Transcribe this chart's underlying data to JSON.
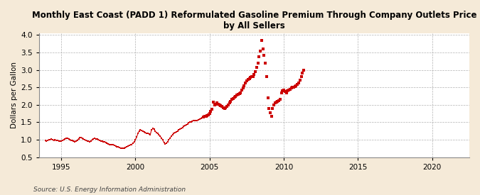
{
  "title": "Monthly East Coast (PADD 1) Reformulated Gasoline Premium Through Company Outlets Price\nby All Sellers",
  "ylabel": "Dollars per Gallon",
  "source": "Source: U.S. Energy Information Administration",
  "background_color": "#f5ead8",
  "line_color": "#cc0000",
  "xlim": [
    1993.5,
    2022.5
  ],
  "ylim": [
    0.5,
    4.05
  ],
  "yticks": [
    0.5,
    1.0,
    1.5,
    2.0,
    2.5,
    3.0,
    3.5,
    4.0
  ],
  "xticks": [
    1995,
    2000,
    2005,
    2010,
    2015,
    2020
  ],
  "data": [
    [
      1993.92,
      0.98
    ],
    [
      1994.0,
      0.97
    ],
    [
      1994.08,
      0.98
    ],
    [
      1994.17,
      1.0
    ],
    [
      1994.25,
      1.01
    ],
    [
      1994.33,
      1.02
    ],
    [
      1994.42,
      1.0
    ],
    [
      1994.5,
      0.99
    ],
    [
      1994.58,
      1.0
    ],
    [
      1994.67,
      0.99
    ],
    [
      1994.75,
      0.98
    ],
    [
      1994.83,
      0.97
    ],
    [
      1994.92,
      0.97
    ],
    [
      1995.0,
      0.97
    ],
    [
      1995.08,
      0.98
    ],
    [
      1995.17,
      1.0
    ],
    [
      1995.25,
      1.02
    ],
    [
      1995.33,
      1.04
    ],
    [
      1995.42,
      1.05
    ],
    [
      1995.5,
      1.03
    ],
    [
      1995.58,
      1.01
    ],
    [
      1995.67,
      0.99
    ],
    [
      1995.75,
      0.98
    ],
    [
      1995.83,
      0.97
    ],
    [
      1995.92,
      0.95
    ],
    [
      1996.0,
      0.97
    ],
    [
      1996.08,
      0.99
    ],
    [
      1996.17,
      1.03
    ],
    [
      1996.25,
      1.07
    ],
    [
      1996.33,
      1.06
    ],
    [
      1996.42,
      1.04
    ],
    [
      1996.5,
      1.02
    ],
    [
      1996.58,
      1.0
    ],
    [
      1996.67,
      0.98
    ],
    [
      1996.75,
      0.97
    ],
    [
      1996.83,
      0.96
    ],
    [
      1996.92,
      0.95
    ],
    [
      1997.0,
      0.97
    ],
    [
      1997.08,
      1.0
    ],
    [
      1997.17,
      1.03
    ],
    [
      1997.25,
      1.04
    ],
    [
      1997.33,
      1.03
    ],
    [
      1997.42,
      1.02
    ],
    [
      1997.5,
      1.0
    ],
    [
      1997.58,
      0.99
    ],
    [
      1997.67,
      0.97
    ],
    [
      1997.75,
      0.96
    ],
    [
      1997.83,
      0.95
    ],
    [
      1997.92,
      0.94
    ],
    [
      1998.0,
      0.93
    ],
    [
      1998.08,
      0.91
    ],
    [
      1998.17,
      0.89
    ],
    [
      1998.25,
      0.87
    ],
    [
      1998.33,
      0.86
    ],
    [
      1998.42,
      0.86
    ],
    [
      1998.5,
      0.85
    ],
    [
      1998.58,
      0.84
    ],
    [
      1998.67,
      0.82
    ],
    [
      1998.75,
      0.8
    ],
    [
      1998.83,
      0.79
    ],
    [
      1998.92,
      0.77
    ],
    [
      1999.0,
      0.76
    ],
    [
      1999.08,
      0.75
    ],
    [
      1999.17,
      0.75
    ],
    [
      1999.25,
      0.76
    ],
    [
      1999.33,
      0.78
    ],
    [
      1999.42,
      0.8
    ],
    [
      1999.5,
      0.82
    ],
    [
      1999.58,
      0.84
    ],
    [
      1999.67,
      0.85
    ],
    [
      1999.75,
      0.87
    ],
    [
      1999.83,
      0.9
    ],
    [
      1999.92,
      0.94
    ],
    [
      2000.0,
      1.0
    ],
    [
      2000.08,
      1.08
    ],
    [
      2000.17,
      1.18
    ],
    [
      2000.25,
      1.25
    ],
    [
      2000.33,
      1.28
    ],
    [
      2000.42,
      1.26
    ],
    [
      2000.5,
      1.24
    ],
    [
      2000.58,
      1.22
    ],
    [
      2000.67,
      1.2
    ],
    [
      2000.75,
      1.19
    ],
    [
      2000.83,
      1.18
    ],
    [
      2000.92,
      1.17
    ],
    [
      2001.0,
      1.15
    ],
    [
      2001.08,
      1.28
    ],
    [
      2001.17,
      1.32
    ],
    [
      2001.25,
      1.3
    ],
    [
      2001.33,
      1.25
    ],
    [
      2001.42,
      1.2
    ],
    [
      2001.5,
      1.18
    ],
    [
      2001.58,
      1.15
    ],
    [
      2001.67,
      1.1
    ],
    [
      2001.75,
      1.05
    ],
    [
      2001.83,
      1.0
    ],
    [
      2001.92,
      0.92
    ],
    [
      2002.0,
      0.88
    ],
    [
      2002.08,
      0.9
    ],
    [
      2002.17,
      0.95
    ],
    [
      2002.25,
      1.0
    ],
    [
      2002.33,
      1.05
    ],
    [
      2002.42,
      1.1
    ],
    [
      2002.5,
      1.15
    ],
    [
      2002.58,
      1.18
    ],
    [
      2002.67,
      1.2
    ],
    [
      2002.75,
      1.22
    ],
    [
      2002.83,
      1.25
    ],
    [
      2002.92,
      1.28
    ],
    [
      2003.0,
      1.3
    ],
    [
      2003.08,
      1.32
    ],
    [
      2003.17,
      1.35
    ],
    [
      2003.25,
      1.38
    ],
    [
      2003.33,
      1.4
    ],
    [
      2003.42,
      1.42
    ],
    [
      2003.5,
      1.45
    ],
    [
      2003.58,
      1.48
    ],
    [
      2003.67,
      1.5
    ],
    [
      2003.75,
      1.52
    ],
    [
      2003.83,
      1.54
    ],
    [
      2003.92,
      1.55
    ],
    [
      2004.0,
      1.55
    ],
    [
      2004.08,
      1.55
    ],
    [
      2004.17,
      1.56
    ],
    [
      2004.25,
      1.58
    ],
    [
      2004.33,
      1.6
    ],
    [
      2004.42,
      1.62
    ],
    [
      2004.5,
      1.63
    ],
    [
      2004.58,
      1.65
    ],
    [
      2004.67,
      1.67
    ],
    [
      2004.75,
      1.68
    ],
    [
      2004.83,
      1.7
    ],
    [
      2004.92,
      1.72
    ],
    [
      2005.0,
      1.75
    ],
    [
      2005.08,
      1.82
    ],
    [
      2005.17,
      1.88
    ],
    [
      2005.25,
      2.08
    ],
    [
      2005.33,
      2.0
    ],
    [
      2005.42,
      2.02
    ],
    [
      2005.5,
      2.05
    ],
    [
      2005.58,
      2.02
    ],
    [
      2005.67,
      2.0
    ],
    [
      2005.75,
      1.98
    ],
    [
      2005.83,
      1.95
    ],
    [
      2005.92,
      1.92
    ],
    [
      2006.0,
      1.9
    ],
    [
      2006.08,
      1.92
    ],
    [
      2006.17,
      1.95
    ],
    [
      2006.25,
      2.0
    ],
    [
      2006.33,
      2.05
    ],
    [
      2006.42,
      2.1
    ],
    [
      2006.5,
      2.15
    ],
    [
      2006.58,
      2.18
    ],
    [
      2006.67,
      2.22
    ],
    [
      2006.75,
      2.25
    ],
    [
      2006.83,
      2.28
    ],
    [
      2006.92,
      2.3
    ],
    [
      2007.0,
      2.32
    ],
    [
      2007.08,
      2.35
    ],
    [
      2007.17,
      2.42
    ],
    [
      2007.25,
      2.48
    ],
    [
      2007.33,
      2.55
    ],
    [
      2007.42,
      2.62
    ],
    [
      2007.5,
      2.68
    ],
    [
      2007.58,
      2.72
    ],
    [
      2007.67,
      2.75
    ],
    [
      2007.75,
      2.78
    ],
    [
      2007.83,
      2.8
    ],
    [
      2007.92,
      2.82
    ],
    [
      2008.0,
      2.88
    ],
    [
      2008.08,
      2.95
    ],
    [
      2008.17,
      3.08
    ],
    [
      2008.25,
      3.2
    ],
    [
      2008.33,
      3.38
    ],
    [
      2008.42,
      3.55
    ],
    [
      2008.5,
      3.85
    ],
    [
      2008.58,
      3.6
    ],
    [
      2008.67,
      3.42
    ],
    [
      2008.75,
      3.2
    ],
    [
      2008.83,
      2.8
    ],
    [
      2008.92,
      2.2
    ],
    [
      2009.0,
      1.9
    ],
    [
      2009.08,
      1.78
    ],
    [
      2009.17,
      1.68
    ],
    [
      2009.25,
      1.9
    ],
    [
      2009.33,
      2.0
    ],
    [
      2009.42,
      2.05
    ],
    [
      2009.5,
      2.08
    ],
    [
      2009.58,
      2.1
    ],
    [
      2009.67,
      2.12
    ],
    [
      2009.75,
      2.15
    ],
    [
      2009.83,
      2.35
    ],
    [
      2009.92,
      2.4
    ],
    [
      2010.0,
      2.42
    ],
    [
      2010.08,
      2.38
    ],
    [
      2010.17,
      2.35
    ],
    [
      2010.25,
      2.4
    ],
    [
      2010.33,
      2.42
    ],
    [
      2010.42,
      2.45
    ],
    [
      2010.5,
      2.48
    ],
    [
      2010.58,
      2.5
    ],
    [
      2010.67,
      2.5
    ],
    [
      2010.75,
      2.52
    ],
    [
      2010.83,
      2.55
    ],
    [
      2010.92,
      2.58
    ],
    [
      2011.0,
      2.62
    ],
    [
      2011.08,
      2.7
    ],
    [
      2011.17,
      2.8
    ],
    [
      2011.25,
      2.92
    ],
    [
      2011.33,
      3.0
    ]
  ]
}
